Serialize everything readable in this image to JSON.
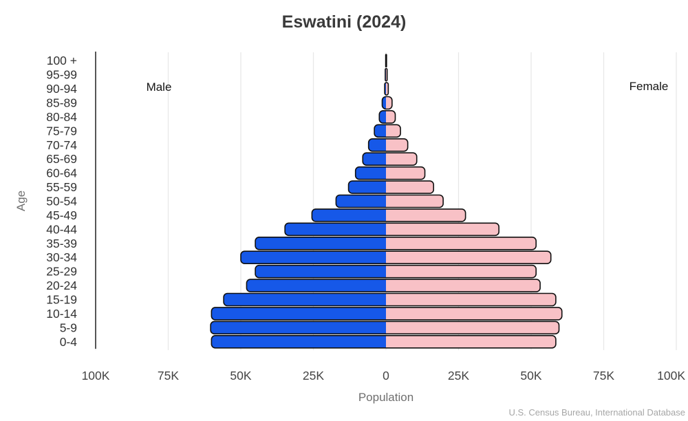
{
  "title": "Eswatini (2024)",
  "source_note": "U.S. Census Bureau, International Database",
  "colors": {
    "male": "#1658e8",
    "female": "#f8c1c6",
    "bar_outline": "#101010",
    "gridline": "#e7e7e7",
    "axis_line": "#1f1f1f",
    "age_tick": "#333333",
    "x_tick": "#444444"
  },
  "chart_data": {
    "type": "bar",
    "subtype": "population-pyramid",
    "orientation": "horizontal",
    "title": "Eswatini (2024)",
    "xlabel": "Population",
    "ylabel": "Age",
    "left_series_label": "Male",
    "right_series_label": "Female",
    "grid": true,
    "legend_position": "inside-top-corners",
    "x_tick_labels": [
      "100K",
      "75K",
      "50K",
      "25K",
      "0",
      "25K",
      "50K",
      "75K",
      "100K"
    ],
    "x_tick_values": [
      -100000,
      -75000,
      -50000,
      -25000,
      0,
      25000,
      50000,
      75000,
      100000
    ],
    "xlim_each_side": [
      0,
      100000
    ],
    "categories": [
      "100 +",
      "95-99",
      "90-94",
      "85-89",
      "80-84",
      "75-79",
      "70-74",
      "65-69",
      "60-64",
      "55-59",
      "50-54",
      "45-49",
      "40-44",
      "35-39",
      "30-34",
      "25-29",
      "20-24",
      "15-19",
      "10-14",
      "5-9",
      "0-4"
    ],
    "series": [
      {
        "name": "Male",
        "side": "left",
        "color": "#1658e8",
        "values": [
          100,
          250,
          450,
          1300,
          2300,
          4000,
          6000,
          8000,
          10500,
          12900,
          17200,
          25500,
          34800,
          45000,
          50000,
          45000,
          48000,
          55900,
          60100,
          60400,
          60100
        ]
      },
      {
        "name": "Female",
        "side": "right",
        "color": "#f8c1c6",
        "values": [
          200,
          400,
          800,
          2100,
          3200,
          5000,
          7500,
          10600,
          13400,
          16400,
          19700,
          27400,
          38900,
          51700,
          56800,
          51700,
          53100,
          58500,
          60600,
          59600,
          58500
        ]
      }
    ]
  }
}
